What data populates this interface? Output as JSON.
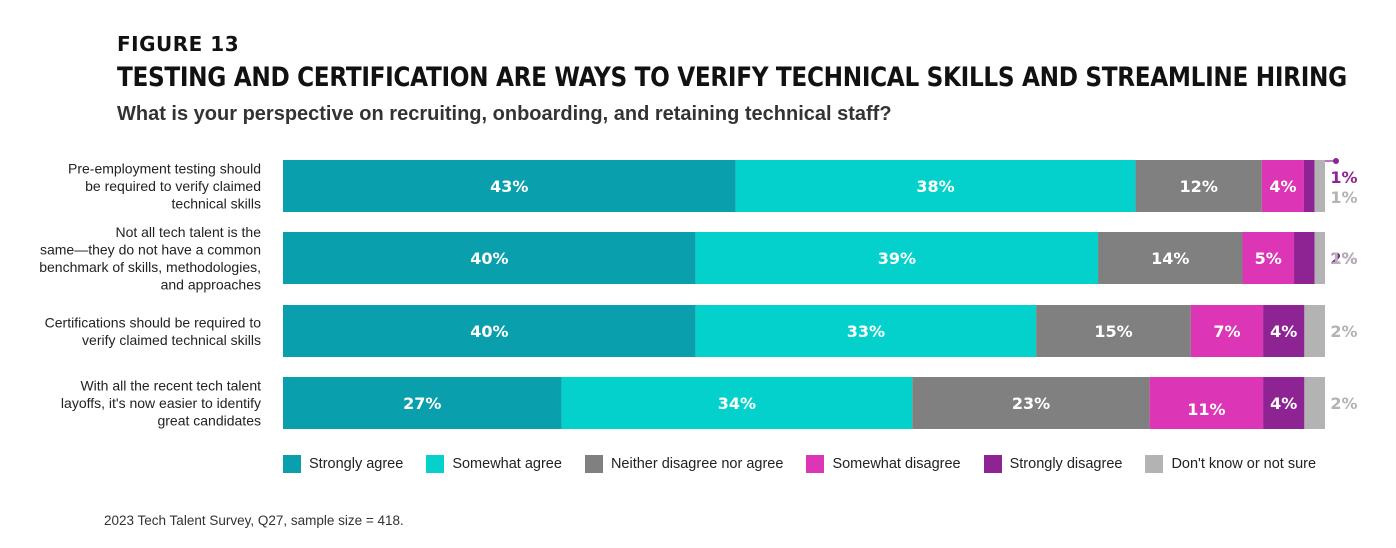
{
  "figure_label": "FIGURE 13",
  "title": "TESTING AND CERTIFICATION ARE WAYS TO VERIFY TECHNICAL SKILLS AND STREAMLINE HIRING",
  "subtitle": "What is your perspective on recruiting, onboarding, and retaining technical staff?",
  "source": "2023 Tech Talent Survey, Q27, sample size = 418.",
  "chart_data": {
    "type": "bar",
    "orientation": "horizontal",
    "stacked": true,
    "xlim": [
      0,
      100
    ],
    "grid": false,
    "legend_position": "bottom",
    "categories": [
      [
        "Pre-employment testing should",
        "be required to verify claimed",
        "technical skills"
      ],
      [
        "Not all tech talent is the",
        "same—they do not have a common",
        "benchmark of skills, methodologies,",
        "and approaches"
      ],
      [
        "Certifications should be required to",
        "verify claimed technical skills"
      ],
      [
        "With all the recent tech talent",
        "layoffs, it's now easier to identify",
        "great candidates"
      ]
    ],
    "series": [
      {
        "name": "Strongly agree",
        "color": "#0a9fad",
        "values": [
          43,
          40,
          40,
          27
        ],
        "labels": [
          "43%",
          "40%",
          "40%",
          "27%"
        ]
      },
      {
        "name": "Somewhat agree",
        "color": "#05d1cc",
        "values": [
          38,
          39,
          33,
          34
        ],
        "labels": [
          "38%",
          "39%",
          "33%",
          "34%"
        ]
      },
      {
        "name": "Neither disagree nor agree",
        "color": "#808080",
        "values": [
          12,
          14,
          15,
          23
        ],
        "labels": [
          "12%",
          "14%",
          "15%",
          "23%"
        ]
      },
      {
        "name": "Somewhat disagree",
        "color": "#dc35b6",
        "values": [
          4,
          5,
          7,
          11
        ],
        "labels": [
          "4%",
          "5%",
          "7%",
          "11%"
        ]
      },
      {
        "name": "Strongly disagree",
        "color": "#8e2493",
        "values": [
          1,
          2,
          4,
          4
        ],
        "labels": [
          "1%",
          "2%",
          "4%",
          "4%"
        ]
      },
      {
        "name": "Don't know or not sure",
        "color": "#b3b3b3",
        "values": [
          1,
          1,
          2,
          2
        ],
        "labels": [
          "1%",
          "1%",
          "2%",
          "2%"
        ]
      }
    ]
  }
}
